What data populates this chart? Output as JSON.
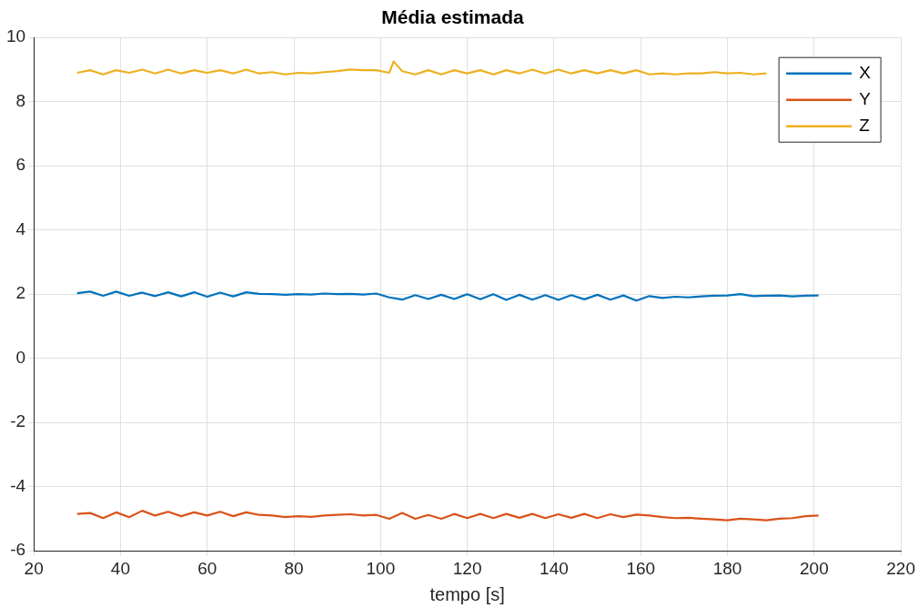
{
  "chart_data": {
    "type": "line",
    "title": "Média estimada",
    "xlabel": "tempo [s]",
    "x": [
      30,
      33,
      36,
      39,
      42,
      45,
      48,
      51,
      54,
      57,
      60,
      63,
      66,
      69,
      72,
      75,
      78,
      81,
      84,
      87,
      90,
      93,
      96,
      99,
      102,
      105,
      108,
      111,
      114,
      117,
      120,
      123,
      126,
      129,
      132,
      135,
      138,
      141,
      144,
      147,
      150,
      153,
      156,
      159,
      162,
      165,
      168,
      171,
      174,
      177,
      180,
      183,
      186,
      189,
      192,
      195,
      198,
      201
    ],
    "series": [
      {
        "name": "X",
        "color": "#0072bd",
        "values": [
          2.03,
          2.08,
          1.95,
          2.08,
          1.95,
          2.05,
          1.94,
          2.06,
          1.93,
          2.06,
          1.92,
          2.05,
          1.93,
          2.06,
          2.01,
          2.0,
          1.98,
          2.0,
          1.99,
          2.02,
          2.0,
          2.01,
          1.99,
          2.02,
          1.9,
          1.83,
          1.97,
          1.85,
          1.98,
          1.85,
          2.0,
          1.84,
          2.0,
          1.82,
          1.98,
          1.83,
          1.97,
          1.82,
          1.97,
          1.84,
          1.98,
          1.83,
          1.96,
          1.8,
          1.94,
          1.88,
          1.92,
          1.9,
          1.93,
          1.95,
          1.96,
          2.0,
          1.94,
          1.95,
          1.96,
          1.93,
          1.95,
          1.96
        ]
      },
      {
        "name": "Y",
        "color": "#d95319",
        "values": [
          -4.85,
          -4.82,
          -4.98,
          -4.8,
          -4.95,
          -4.75,
          -4.9,
          -4.78,
          -4.92,
          -4.8,
          -4.9,
          -4.78,
          -4.92,
          -4.8,
          -4.88,
          -4.9,
          -4.95,
          -4.92,
          -4.94,
          -4.9,
          -4.88,
          -4.86,
          -4.9,
          -4.88,
          -5.0,
          -4.82,
          -5.0,
          -4.88,
          -5.0,
          -4.85,
          -4.98,
          -4.85,
          -4.98,
          -4.85,
          -4.97,
          -4.85,
          -4.98,
          -4.86,
          -4.97,
          -4.85,
          -4.98,
          -4.86,
          -4.95,
          -4.87,
          -4.9,
          -4.95,
          -4.98,
          -4.97,
          -5.0,
          -5.02,
          -5.05,
          -5.0,
          -5.02,
          -5.05,
          -5.0,
          -4.98,
          -4.92,
          -4.9
        ]
      },
      {
        "name": "Z",
        "color": "#edb120",
        "x": [
          30,
          33,
          36,
          39,
          42,
          45,
          48,
          51,
          54,
          57,
          60,
          63,
          66,
          69,
          72,
          75,
          78,
          81,
          84,
          87,
          90,
          93,
          96,
          99,
          102,
          103,
          105,
          108,
          111,
          114,
          117,
          120,
          123,
          126,
          129,
          132,
          135,
          138,
          141,
          144,
          147,
          150,
          153,
          156,
          159,
          162,
          165,
          168,
          171,
          174,
          177,
          180,
          183,
          186,
          189
        ],
        "values": [
          8.9,
          8.98,
          8.85,
          8.98,
          8.9,
          9.0,
          8.88,
          9.0,
          8.88,
          8.98,
          8.9,
          8.98,
          8.88,
          9.0,
          8.88,
          8.92,
          8.85,
          8.9,
          8.88,
          8.92,
          8.95,
          9.0,
          8.98,
          8.98,
          8.9,
          9.25,
          8.95,
          8.85,
          8.98,
          8.85,
          8.98,
          8.88,
          8.98,
          8.85,
          8.98,
          8.88,
          9.0,
          8.88,
          9.0,
          8.88,
          8.98,
          8.88,
          8.98,
          8.88,
          8.98,
          8.85,
          8.88,
          8.85,
          8.88,
          8.88,
          8.92,
          8.88,
          8.9,
          8.85,
          8.88
        ]
      }
    ],
    "xlim": [
      20,
      220
    ],
    "xticks": [
      20,
      40,
      60,
      80,
      100,
      120,
      140,
      160,
      180,
      200,
      220
    ],
    "ylim": [
      -6,
      10
    ],
    "yticks": [
      -6,
      -4,
      -2,
      0,
      2,
      4,
      6,
      8,
      10
    ],
    "grid": true,
    "legend": "top right",
    "marker": "none",
    "line_style": "solid"
  }
}
